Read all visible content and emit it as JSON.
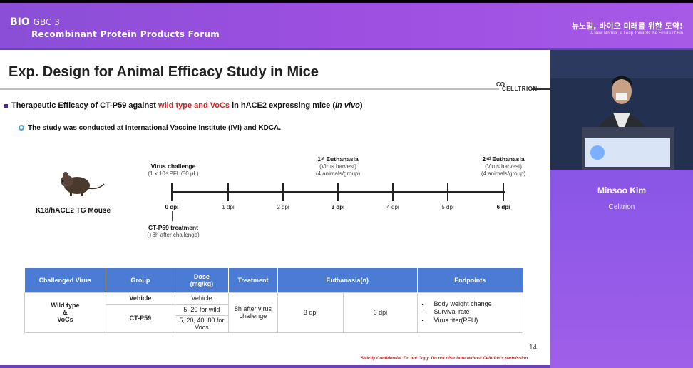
{
  "header": {
    "logo": "BIO",
    "logo_sub": "GBC 3",
    "forum_title": "Recombinant Protein Products Forum",
    "korean_title": "뉴노멀, 바이오 미래를 위한 도약!",
    "korean_subtitle": "A New Normal, a Leap Towards the Future of Bio"
  },
  "slide": {
    "title": "Exp. Design for Animal Efficacy Study in Mice",
    "brand_prefix": "CO",
    "brand": "CELLTRION",
    "bullet1_before": "Therapeutic Efficacy of CT-P59 against ",
    "bullet1_red": "wild type and VoCs",
    "bullet1_after": " in hACE2 expressing mice (",
    "bullet1_italic": "In vivo",
    "bullet1_close": ")",
    "bullet2": "The study was conducted at International Vaccine Institute (IVI) and KDCA.",
    "mouse_label": "K18/hACE2 TG Mouse",
    "timeline": {
      "virus_challenge": "Virus challenge",
      "virus_dose": "(1 x 10⁴ PFU/50 μL)",
      "treatment": "CT-P59 treatment",
      "treatment_time": "(+8h after challenge)",
      "euth1_title": "1ˢᵗ Euthanasia",
      "euth1_line1": "(Virus harvest)",
      "euth1_line2": "(4 animals/group)",
      "euth2_title": "2ⁿᵈ Euthanasia",
      "euth2_line1": "(Virus harvest)",
      "euth2_line2": "(4 animals/group)",
      "days": [
        "0 dpi",
        "1 dpi",
        "2 dpi",
        "3 dpi",
        "4 dpi",
        "5 dpi",
        "6 dpi"
      ]
    },
    "table": {
      "headers": [
        "Challenged Virus",
        "Group",
        "Dose\n(mg/kg)",
        "Treatment",
        "Euthanasia(n)",
        "Endpoints"
      ],
      "virus": "Wild type\n&\nVoCs",
      "group_vehicle": "Vehicle",
      "group_ctp59": "CT-P59",
      "dose_vehicle": "Vehicle",
      "dose_wild": "5, 20 for wild",
      "dose_vocs": "5, 20, 40, 80 for Vocs",
      "treatment": "8h after virus challenge",
      "euth_a": "3 dpi",
      "euth_b": "6 dpi",
      "endpoints": [
        "Body weight change",
        "Survival rate",
        "Virus titer(PFU)"
      ]
    },
    "page_number": "14",
    "confidential": "Strictly Confidential. Do not Copy. Do not distribute without Celltrion's permission"
  },
  "speaker": {
    "name": "Minsoo Kim",
    "organization": "Celltrion"
  }
}
